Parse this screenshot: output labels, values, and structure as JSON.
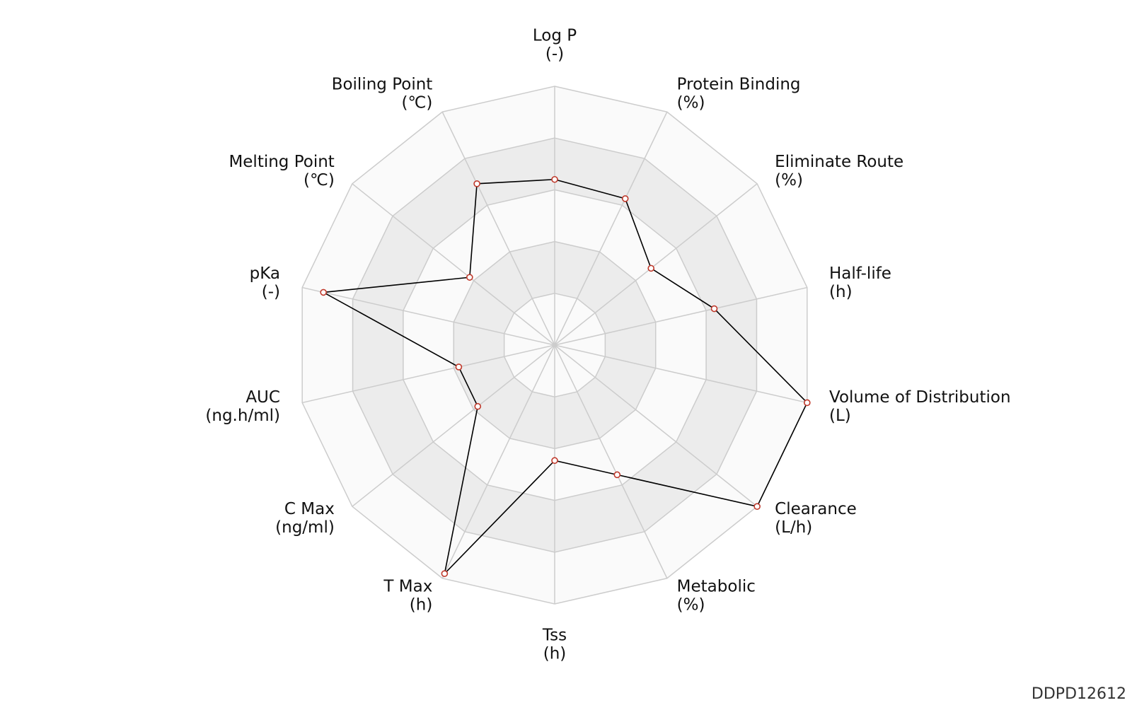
{
  "chart_data": {
    "type": "radar",
    "categories": [
      "Log P",
      "Protein Binding",
      "Eliminate Route",
      "Half-life",
      "Volume of Distribution",
      "Clearance",
      "Metabolic",
      "Tss",
      "T Max",
      "C Max",
      "AUC",
      "pKa",
      "Melting Point",
      "Boiling Point"
    ],
    "units": [
      "(-)",
      "(%)",
      "(%)",
      "(h)",
      "(L)",
      "(L/h)",
      "(%)",
      "(h)",
      "(h)",
      "(ng/ml)",
      "(ng.h/ml)",
      "(-)",
      "(℃)",
      "(℃)"
    ],
    "values": [
      3.2,
      3.14,
      2.38,
      3.16,
      5.0,
      5.0,
      2.78,
      2.23,
      4.9,
      1.9,
      1.9,
      4.58,
      2.1,
      3.46
    ],
    "rlim": [
      0,
      5
    ],
    "rings": 5,
    "color": "#000000",
    "marker_color": "#c0392b",
    "grid_color": "#cccccc",
    "band_colors": [
      "#fafafa",
      "#ececec"
    ],
    "footer": "DDPD12612"
  }
}
